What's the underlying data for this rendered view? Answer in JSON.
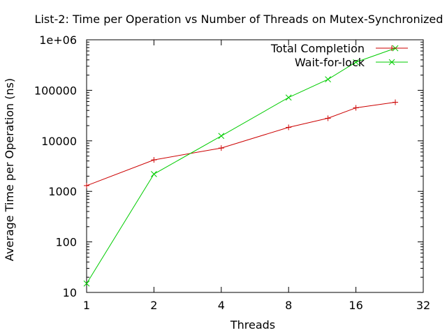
{
  "chart_data": {
    "type": "line",
    "title": "List-2: Time per Operation vs Number of Threads on Mutex-Synchronized",
    "xlabel": "Threads",
    "ylabel": "Average Time per Operation (ns)",
    "xscale": "log2",
    "yscale": "log10",
    "xlim": [
      1,
      32
    ],
    "ylim": [
      10,
      1000000
    ],
    "x_ticks": [
      1,
      2,
      4,
      8,
      16,
      32
    ],
    "x_tick_labels": [
      "1",
      "2",
      "4",
      "8",
      "16",
      "32"
    ],
    "y_ticks": [
      10,
      100,
      1000,
      10000,
      100000,
      1000000
    ],
    "y_tick_labels": [
      "10",
      "100",
      "1000",
      "10000",
      "100000",
      "1e+06"
    ],
    "grid": false,
    "legend_position": "top-right",
    "series": [
      {
        "name": "Total Completion",
        "color": "#cc0000",
        "marker": "plus",
        "x": [
          1,
          2,
          4,
          8,
          12,
          16,
          24
        ],
        "y": [
          1300,
          4200,
          7200,
          18500,
          28000,
          45000,
          58000
        ]
      },
      {
        "name": "Wait-for-lock",
        "color": "#00cc00",
        "marker": "cross",
        "x": [
          1,
          2,
          4,
          8,
          12,
          16,
          24
        ],
        "y": [
          15,
          2200,
          12500,
          72000,
          165000,
          360000,
          680000
        ]
      }
    ]
  }
}
